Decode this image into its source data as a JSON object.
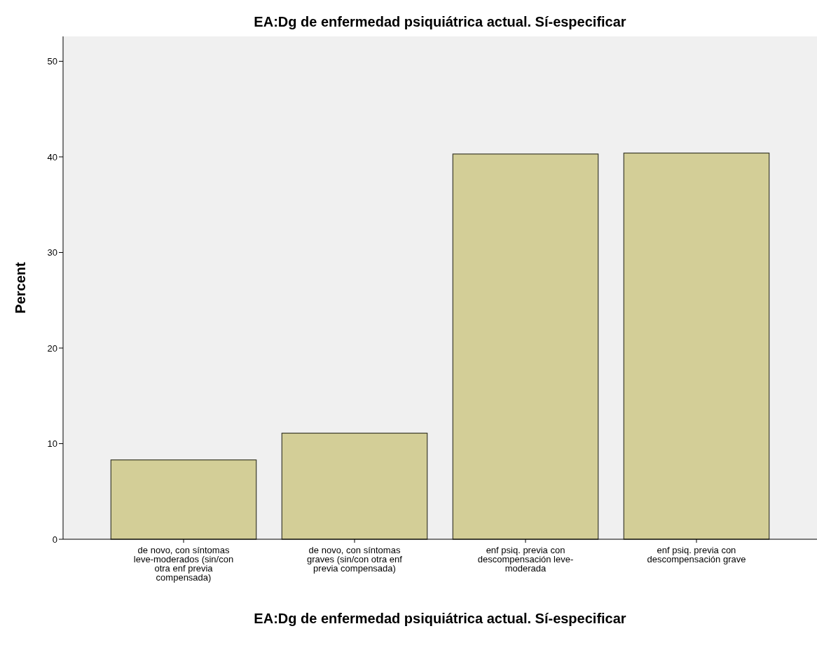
{
  "chart_data": {
    "type": "bar",
    "title": "EA:Dg de enfermedad psiquiátrica actual. Sí-especificar",
    "xlabel": "EA:Dg de enfermedad psiquiátrica actual. Sí-especificar",
    "ylabel": "Percent",
    "categories": [
      "de novo, con síntomas leve-moderados (sin/con otra enf previa compensada)",
      "de novo, con síntomas graves (sin/con otra enf previa compensada)",
      "enf psiq. previa con descompensación leve-moderada",
      "enf psiq. previa con descompensación grave"
    ],
    "values": [
      8.3,
      11.1,
      40.3,
      40.4
    ],
    "color": "#d3ce97",
    "ylim": [
      0,
      52.6
    ],
    "yticks": [
      0,
      10,
      20,
      30,
      40,
      50
    ],
    "grid": false
  }
}
